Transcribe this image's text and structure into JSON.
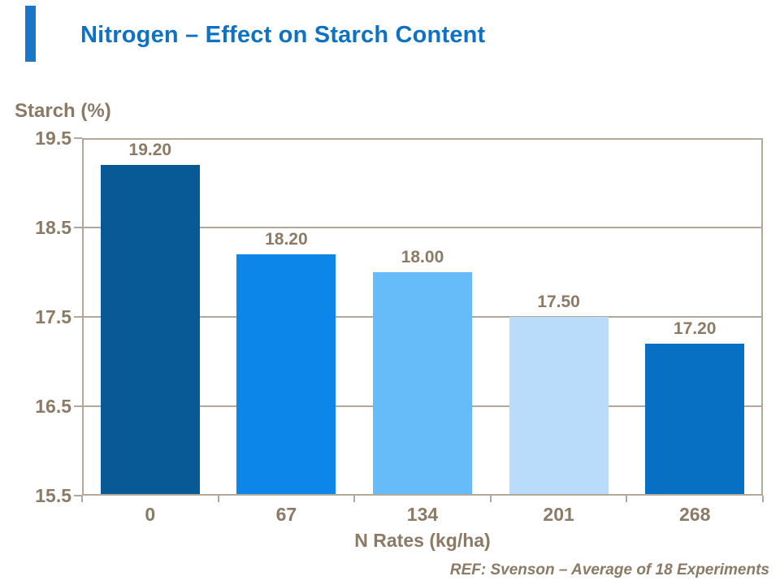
{
  "slide": {
    "title": "Nitrogen – Effect on Starch Content",
    "footer": "REF: Svenson – Average of 18 Experiments"
  },
  "colors": {
    "title": "#0d72c4",
    "accent_bar": "#1b76c8",
    "text": "#8b7a66",
    "axis_line": "#b3a79a"
  },
  "chart_data": {
    "type": "bar",
    "title": "Nitrogen – Effect on Starch Content",
    "xlabel": "N Rates (kg/ha)",
    "ylabel": "Starch (%)",
    "categories": [
      "0",
      "67",
      "134",
      "201",
      "268"
    ],
    "values": [
      19.2,
      18.2,
      18.0,
      17.5,
      17.2
    ],
    "value_labels": [
      "19.20",
      "18.20",
      "18.00",
      "17.50",
      "17.20"
    ],
    "bar_colors": [
      "#075a96",
      "#0c86e8",
      "#66bbf9",
      "#b9dcfb",
      "#0870c2"
    ],
    "ylim": [
      15.5,
      19.5
    ],
    "yticks": [
      19.5,
      18.5,
      17.5,
      16.5,
      15.5
    ],
    "ytick_labels": [
      "19.5",
      "18.5",
      "17.5",
      "16.5",
      "15.5"
    ],
    "grid": true,
    "legend": false,
    "annotation": "REF: Svenson – Average of 18 Experiments"
  }
}
